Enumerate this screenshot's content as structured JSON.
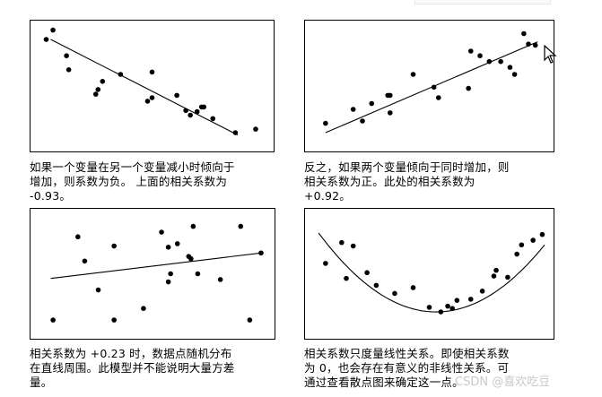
{
  "captions": [
    {
      "lines": [
        "如果一个变量在另一个变量减小时倾向于",
        "增加，则系数为负。 上面的相关系数为",
        "-0.93。"
      ]
    },
    {
      "lines": [
        "反之，如果两个变量倾向于同时增加，则",
        "相关系数为正。此处的相关系数为",
        "+0.92。"
      ]
    },
    {
      "lines": [
        "相关系数为 +0.23 时，数据点随机分布",
        "在直线周围。此模型并不能说明大量方差",
        "量。"
      ]
    },
    {
      "lines": [
        "相关系数只度量线性关系。即使相关系数",
        "为 0，也会存在有意义的非线性关系。可",
        "通过查看散点图来确定这一点。"
      ]
    }
  ],
  "watermark": "CSDN @喜欢吃豆",
  "chart_data": [
    {
      "type": "scatter",
      "title": "",
      "xlabel": "",
      "ylabel": "",
      "xlim": [
        0,
        100
      ],
      "ylim": [
        0,
        100
      ],
      "points": [
        [
          3,
          90
        ],
        [
          6,
          98
        ],
        [
          12,
          76
        ],
        [
          13,
          64
        ],
        [
          28,
          54
        ],
        [
          26,
          47
        ],
        [
          25,
          43
        ],
        [
          36,
          60
        ],
        [
          50,
          62
        ],
        [
          50,
          40
        ],
        [
          48,
          37
        ],
        [
          61,
          42
        ],
        [
          65,
          29
        ],
        [
          67,
          25
        ],
        [
          70,
          28
        ],
        [
          72,
          32
        ],
        [
          73,
          32
        ],
        [
          77,
          22
        ],
        [
          87,
          10
        ],
        [
          96,
          13
        ]
      ],
      "trend": {
        "kind": "line",
        "from": [
          5,
          90
        ],
        "to": [
          88,
          8
        ]
      },
      "correlation": -0.93
    },
    {
      "type": "scatter",
      "title": "",
      "xlabel": "",
      "ylabel": "",
      "xlim": [
        0,
        100
      ],
      "ylim": [
        0,
        100
      ],
      "points": [
        [
          5,
          18
        ],
        [
          17,
          30
        ],
        [
          21,
          20
        ],
        [
          25,
          35
        ],
        [
          32,
          42
        ],
        [
          33,
          42
        ],
        [
          33,
          27
        ],
        [
          43,
          60
        ],
        [
          52,
          49
        ],
        [
          54,
          40
        ],
        [
          67,
          48
        ],
        [
          68,
          80
        ],
        [
          72,
          76
        ],
        [
          76,
          71
        ],
        [
          81,
          71
        ],
        [
          85,
          66
        ],
        [
          87,
          60
        ],
        [
          91,
          95
        ],
        [
          93,
          86
        ],
        [
          96,
          85
        ]
      ],
      "trend": {
        "kind": "line",
        "from": [
          5,
          10
        ],
        "to": [
          97,
          88
        ]
      },
      "correlation": 0.92
    },
    {
      "type": "scatter",
      "title": "",
      "xlabel": "",
      "ylabel": "",
      "xlim": [
        0,
        100
      ],
      "ylim": [
        0,
        100
      ],
      "points": [
        [
          6,
          10
        ],
        [
          17,
          82
        ],
        [
          20,
          61
        ],
        [
          26,
          36
        ],
        [
          33,
          10
        ],
        [
          33,
          74
        ],
        [
          46,
          20
        ],
        [
          54,
          86
        ],
        [
          57,
          43
        ],
        [
          57,
          73
        ],
        [
          58,
          50
        ],
        [
          61,
          76
        ],
        [
          66,
          65
        ],
        [
          67,
          63
        ],
        [
          68,
          91
        ],
        [
          70,
          50
        ],
        [
          80,
          45
        ],
        [
          89,
          91
        ],
        [
          93,
          10
        ],
        [
          98,
          68
        ]
      ],
      "trend": {
        "kind": "line",
        "from": [
          5,
          46
        ],
        "to": [
          98,
          68
        ]
      },
      "correlation": 0.23
    },
    {
      "type": "scatter",
      "title": "",
      "xlabel": "",
      "ylabel": "",
      "xlim": [
        0,
        100
      ],
      "ylim": [
        0,
        100
      ],
      "points": [
        [
          5,
          59
        ],
        [
          12,
          77
        ],
        [
          17,
          74
        ],
        [
          14,
          46
        ],
        [
          23,
          51
        ],
        [
          27,
          40
        ],
        [
          35,
          33
        ],
        [
          43,
          38
        ],
        [
          50,
          21
        ],
        [
          55,
          17
        ],
        [
          58,
          22
        ],
        [
          60,
          20
        ],
        [
          62,
          27
        ],
        [
          68,
          28
        ],
        [
          73,
          35
        ],
        [
          78,
          48
        ],
        [
          79,
          53
        ],
        [
          84,
          47
        ],
        [
          88,
          67
        ],
        [
          90,
          75
        ],
        [
          95,
          79
        ],
        [
          99,
          84
        ]
      ],
      "trend": {
        "kind": "curve",
        "shape": "U"
      },
      "correlation": 0
    }
  ]
}
